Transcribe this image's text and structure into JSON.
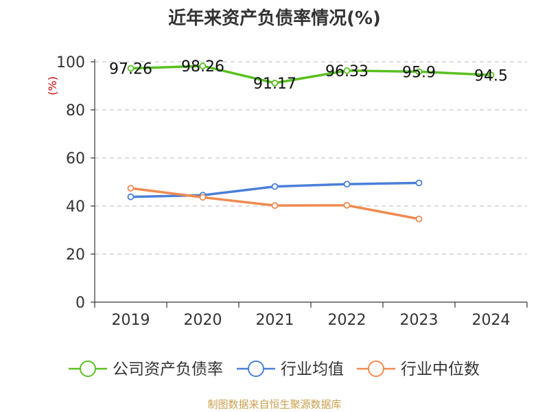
{
  "chart_data": {
    "type": "line",
    "title": "近年来资产负债率情况(%)",
    "ylabel": "(%)",
    "xlabel": "",
    "categories": [
      "2019",
      "2020",
      "2021",
      "2022",
      "2023",
      "2024"
    ],
    "ylim": [
      0,
      100
    ],
    "yticks": [
      0,
      20,
      40,
      60,
      80,
      100
    ],
    "grid": true,
    "legend_position": "bottom",
    "series": [
      {
        "name": "公司资产负债率",
        "color": "#5ac020",
        "values": [
          97.26,
          98.26,
          91.17,
          96.33,
          95.9,
          94.5
        ],
        "labels": [
          "97.26",
          "98.26",
          "91.17",
          "96.33",
          "95.9",
          "94.5"
        ]
      },
      {
        "name": "行业均值",
        "color": "#4a7fd8",
        "values": [
          43.8,
          44.5,
          48.1,
          49.1,
          49.6,
          null
        ]
      },
      {
        "name": "行业中位数",
        "color": "#f08a50",
        "values": [
          47.4,
          43.6,
          40.2,
          40.3,
          34.6,
          null
        ]
      }
    ]
  },
  "source": "制图数据来自恒生聚源数据库"
}
